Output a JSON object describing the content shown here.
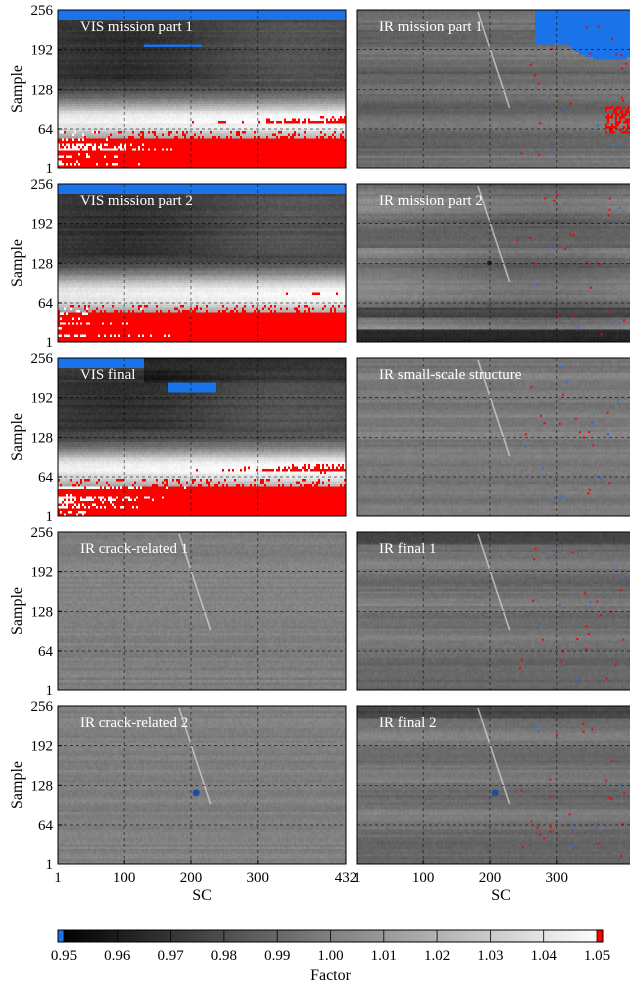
{
  "chart_data": {
    "type": "heatmap",
    "layout": {
      "rows": 5,
      "cols": 2
    },
    "x_axis": {
      "label": "SC",
      "ticks": [
        1,
        100,
        200,
        300,
        432
      ],
      "range": [
        1,
        432
      ]
    },
    "y_axis": {
      "label": "Sample",
      "ticks": [
        1,
        64,
        128,
        192,
        256
      ],
      "range": [
        1,
        256
      ]
    },
    "grid": true,
    "colorbar": {
      "label": "Factor",
      "range": [
        0.95,
        1.05
      ],
      "ticks": [
        "0.95",
        "0.96",
        "0.97",
        "0.98",
        "0.99",
        "1.00",
        "1.01",
        "1.02",
        "1.03",
        "1.04",
        "1.05"
      ],
      "low_color": "#1a73e8",
      "high_color": "#ff0000",
      "position": "bottom"
    },
    "panels": [
      {
        "title": "VIS mission part 1",
        "kind": "vis1"
      },
      {
        "title": "IR mission part 1",
        "kind": "ir1"
      },
      {
        "title": "VIS mission part 2",
        "kind": "vis2"
      },
      {
        "title": "IR mission part 2",
        "kind": "ir2"
      },
      {
        "title": "VIS final",
        "kind": "visf"
      },
      {
        "title": "IR small-scale structure",
        "kind": "irs"
      },
      {
        "title": "IR crack-related 1",
        "kind": "cr1"
      },
      {
        "title": "IR final 1",
        "kind": "irf1"
      },
      {
        "title": "IR crack-related 2",
        "kind": "cr2"
      },
      {
        "title": "IR final 2",
        "kind": "irf2"
      }
    ]
  }
}
